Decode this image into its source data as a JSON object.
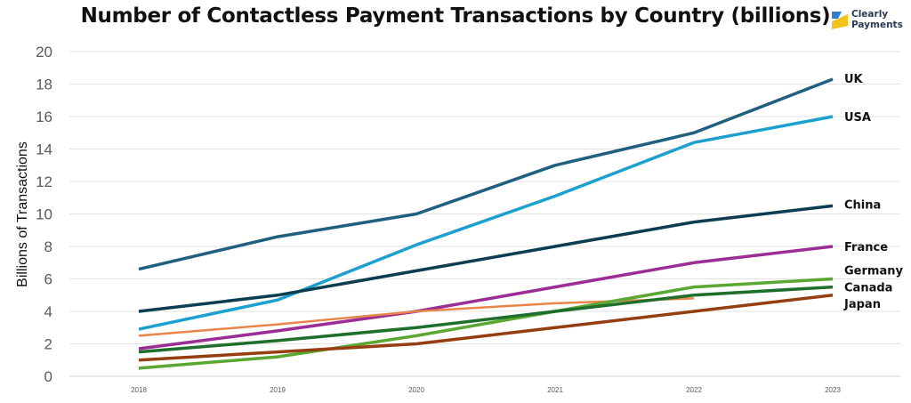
{
  "chart_data": {
    "type": "line",
    "title": "Number of Contactless Payment Transactions by Country (billions)",
    "xlabel": "",
    "ylabel": "Billions of Transactions",
    "x": [
      "2018",
      "2019",
      "2020",
      "2021",
      "2022",
      "2023"
    ],
    "ylim": [
      0,
      20
    ],
    "yticks": [
      0,
      2,
      4,
      6,
      8,
      10,
      12,
      14,
      16,
      18,
      20
    ],
    "grid": true,
    "legend": "none (series labels at line ends)",
    "series": [
      {
        "name": "UK",
        "color": "#1f6080",
        "values": [
          6.6,
          8.6,
          10.0,
          13.0,
          15.0,
          18.3
        ]
      },
      {
        "name": "USA",
        "color": "#1ba0cf",
        "values": [
          2.9,
          4.7,
          8.1,
          11.1,
          14.4,
          16.0
        ]
      },
      {
        "name": "China",
        "color": "#0d3d50",
        "values": [
          4.0,
          5.0,
          6.5,
          8.0,
          9.5,
          10.5
        ]
      },
      {
        "name": "France",
        "color": "#9b2d94",
        "values": [
          1.7,
          2.8,
          4.0,
          5.5,
          7.0,
          8.0
        ]
      },
      {
        "name": "",
        "color": "#e8854a",
        "values": [
          2.5,
          3.2,
          4.0,
          4.5,
          4.8,
          null
        ]
      },
      {
        "name": "Germany",
        "color": "#5aa832",
        "values": [
          0.5,
          1.2,
          2.5,
          4.0,
          5.5,
          6.0
        ]
      },
      {
        "name": "Canada",
        "color": "#1e6e2c",
        "values": [
          1.5,
          2.2,
          3.0,
          4.0,
          5.0,
          5.5
        ]
      },
      {
        "name": "Japan",
        "color": "#963e12",
        "values": [
          1.0,
          1.5,
          2.0,
          3.0,
          4.0,
          5.0
        ]
      }
    ]
  },
  "logo": {
    "line1": "Clearly",
    "line2": "Payments",
    "colors": [
      "#2f7fd1",
      "#f2c31a"
    ]
  }
}
